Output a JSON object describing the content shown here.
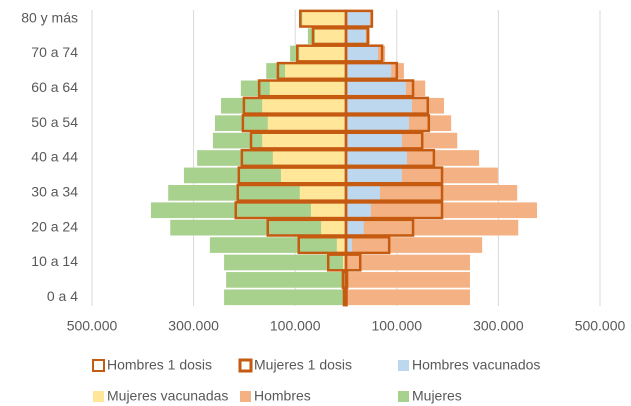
{
  "chart_data": {
    "type": "pyramid",
    "categories": [
      "0 a 4",
      null,
      "10 a 14",
      null,
      "20 a 24",
      null,
      "30 a 34",
      null,
      "40 a 44",
      null,
      "50 a 54",
      null,
      "60 a 64",
      null,
      "70 a 74",
      null,
      "80 y más"
    ],
    "series": [
      {
        "name": "Hombres 1 dosis",
        "color": "#c55a11",
        "outline": true,
        "values": [
          1000,
          2000,
          28000,
          85000,
          132000,
          189000,
          189000,
          189000,
          173000,
          150000,
          163000,
          161000,
          132000,
          100000,
          71000,
          43000,
          51000
        ]
      },
      {
        "name": "Mujeres 1 dosis",
        "color": "#c55a11",
        "outline": true,
        "values": [
          -4000,
          -6000,
          -35000,
          -93000,
          -154000,
          -217000,
          -213000,
          -211000,
          -205000,
          -187000,
          -203000,
          -201000,
          -171000,
          -134000,
          -96000,
          -65000,
          -90000
        ]
      },
      {
        "name": "Hombres vacunados",
        "color": "#bdd7ee",
        "values": [
          0,
          0,
          2000,
          12000,
          35000,
          49000,
          67000,
          110000,
          120000,
          110000,
          124000,
          130000,
          118000,
          89000,
          63000,
          39000,
          47000
        ]
      },
      {
        "name": "Mujeres vacunadas",
        "color": "#ffe699",
        "values": [
          0,
          -2000,
          -6000,
          -18000,
          -49000,
          -69000,
          -91000,
          -128000,
          -144000,
          -165000,
          -154000,
          -165000,
          -150000,
          -120000,
          -92000,
          -61000,
          -86000
        ]
      },
      {
        "name": "Hombres",
        "color": "#f4b183",
        "values": [
          244000,
          244000,
          244000,
          268000,
          339000,
          376000,
          337000,
          299000,
          262000,
          219000,
          207000,
          193000,
          156000,
          114000,
          77000,
          47000,
          51000
        ]
      },
      {
        "name": "Mujeres",
        "color": "#a9d18e",
        "values": [
          -240000,
          -236000,
          -240000,
          -268000,
          -346000,
          -384000,
          -350000,
          -319000,
          -293000,
          -262000,
          -258000,
          -246000,
          -207000,
          -157000,
          -110000,
          -75000,
          -90000
        ]
      }
    ],
    "xlim": [
      -500000,
      500000
    ],
    "xticks": [
      {
        "value": -500000,
        "label": "500.000"
      },
      {
        "value": -300000,
        "label": "300.000"
      },
      {
        "value": -100000,
        "label": "100.000"
      },
      {
        "value": 100000,
        "label": "100.000"
      },
      {
        "value": 300000,
        "label": "300.000"
      },
      {
        "value": 500000,
        "label": "500.000"
      }
    ],
    "grid": true
  }
}
